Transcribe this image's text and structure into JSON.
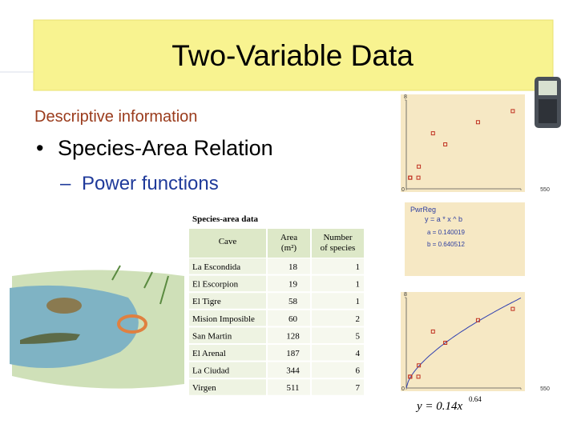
{
  "title": "Two-Variable Data",
  "subtitle": "Descriptive information",
  "bullet": "Species-Area Relation",
  "sub_bullet": "Power functions",
  "table": {
    "caption": "Species-area data",
    "columns": [
      "Cave",
      "Area (m²)",
      "Number of species"
    ],
    "rows": [
      [
        "La Escondida",
        18,
        1
      ],
      [
        "El Escorpion",
        19,
        1
      ],
      [
        "El Tigre",
        58,
        1
      ],
      [
        "Mision Imposible",
        60,
        2
      ],
      [
        "San Martin",
        128,
        5
      ],
      [
        "El Arenal",
        187,
        4
      ],
      [
        "La Ciudad",
        344,
        6
      ],
      [
        "Virgen",
        511,
        7
      ]
    ]
  },
  "plot": {
    "xlim": [
      0,
      550
    ],
    "ylim": [
      0,
      8
    ],
    "xticks": [
      0,
      550
    ],
    "yticks": [
      8
    ]
  },
  "regression": {
    "title": "PwrReg",
    "equation": "y = a * x ^ b",
    "coefficients": [
      {
        "value": 0.140019,
        "label": "a = 0.140019"
      },
      {
        "value": 0.640512,
        "label": "b = 0.640512"
      }
    ]
  },
  "formula": {
    "lhs": "y = 0.14x",
    "exponent": "0.64"
  }
}
